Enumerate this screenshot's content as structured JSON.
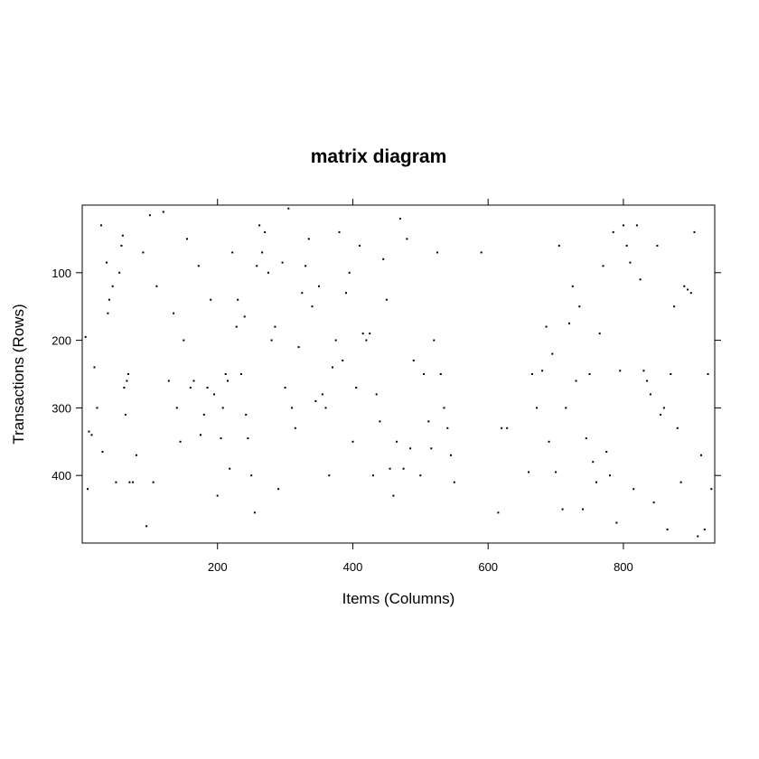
{
  "chart_data": {
    "type": "scatter",
    "title": "matrix diagram",
    "xlabel": "Items (Columns)",
    "ylabel": "Transactions (Rows)",
    "xlim": [
      0,
      935
    ],
    "ylim": [
      500,
      0
    ],
    "x_ticks": [
      200,
      400,
      600,
      800
    ],
    "y_ticks": [
      100,
      200,
      300,
      400
    ],
    "grid": false,
    "legend": "none",
    "point_color": "#000000",
    "series": [
      {
        "points": [
          [
            5,
            195
          ],
          [
            8,
            420
          ],
          [
            10,
            335
          ],
          [
            14,
            340
          ],
          [
            18,
            240
          ],
          [
            22,
            300
          ],
          [
            28,
            30
          ],
          [
            30,
            365
          ],
          [
            36,
            85
          ],
          [
            38,
            160
          ],
          [
            40,
            140
          ],
          [
            45,
            120
          ],
          [
            50,
            410
          ],
          [
            55,
            100
          ],
          [
            58,
            60
          ],
          [
            60,
            45
          ],
          [
            62,
            270
          ],
          [
            64,
            310
          ],
          [
            66,
            260
          ],
          [
            68,
            250
          ],
          [
            70,
            410
          ],
          [
            75,
            410
          ],
          [
            80,
            370
          ],
          [
            90,
            70
          ],
          [
            95,
            475
          ],
          [
            100,
            15
          ],
          [
            105,
            410
          ],
          [
            110,
            120
          ],
          [
            120,
            10
          ],
          [
            128,
            260
          ],
          [
            135,
            160
          ],
          [
            140,
            300
          ],
          [
            145,
            350
          ],
          [
            150,
            200
          ],
          [
            155,
            50
          ],
          [
            160,
            270
          ],
          [
            165,
            260
          ],
          [
            172,
            90
          ],
          [
            175,
            340
          ],
          [
            180,
            310
          ],
          [
            185,
            270
          ],
          [
            190,
            140
          ],
          [
            195,
            280
          ],
          [
            200,
            430
          ],
          [
            205,
            345
          ],
          [
            208,
            300
          ],
          [
            212,
            250
          ],
          [
            215,
            260
          ],
          [
            218,
            390
          ],
          [
            222,
            70
          ],
          [
            228,
            180
          ],
          [
            230,
            140
          ],
          [
            235,
            250
          ],
          [
            240,
            165
          ],
          [
            242,
            310
          ],
          [
            245,
            345
          ],
          [
            250,
            400
          ],
          [
            255,
            455
          ],
          [
            258,
            90
          ],
          [
            262,
            30
          ],
          [
            266,
            70
          ],
          [
            270,
            40
          ],
          [
            275,
            100
          ],
          [
            280,
            200
          ],
          [
            285,
            180
          ],
          [
            290,
            420
          ],
          [
            296,
            85
          ],
          [
            300,
            270
          ],
          [
            305,
            5
          ],
          [
            310,
            300
          ],
          [
            315,
            330
          ],
          [
            320,
            210
          ],
          [
            325,
            130
          ],
          [
            330,
            90
          ],
          [
            335,
            50
          ],
          [
            340,
            150
          ],
          [
            345,
            290
          ],
          [
            350,
            120
          ],
          [
            355,
            280
          ],
          [
            360,
            300
          ],
          [
            365,
            400
          ],
          [
            370,
            240
          ],
          [
            375,
            200
          ],
          [
            380,
            40
          ],
          [
            385,
            230
          ],
          [
            390,
            130
          ],
          [
            395,
            100
          ],
          [
            400,
            350
          ],
          [
            405,
            270
          ],
          [
            410,
            60
          ],
          [
            415,
            190
          ],
          [
            420,
            200
          ],
          [
            425,
            190
          ],
          [
            430,
            400
          ],
          [
            435,
            280
          ],
          [
            440,
            320
          ],
          [
            445,
            80
          ],
          [
            450,
            140
          ],
          [
            455,
            390
          ],
          [
            460,
            430
          ],
          [
            465,
            350
          ],
          [
            470,
            20
          ],
          [
            475,
            390
          ],
          [
            480,
            50
          ],
          [
            485,
            360
          ],
          [
            490,
            230
          ],
          [
            500,
            400
          ],
          [
            505,
            250
          ],
          [
            512,
            320
          ],
          [
            516,
            360
          ],
          [
            520,
            200
          ],
          [
            525,
            70
          ],
          [
            530,
            250
          ],
          [
            535,
            300
          ],
          [
            540,
            330
          ],
          [
            545,
            370
          ],
          [
            550,
            410
          ],
          [
            590,
            70
          ],
          [
            615,
            455
          ],
          [
            620,
            330
          ],
          [
            628,
            330
          ],
          [
            660,
            395
          ],
          [
            665,
            250
          ],
          [
            672,
            300
          ],
          [
            680,
            245
          ],
          [
            686,
            180
          ],
          [
            690,
            350
          ],
          [
            695,
            220
          ],
          [
            700,
            395
          ],
          [
            705,
            60
          ],
          [
            710,
            450
          ],
          [
            715,
            300
          ],
          [
            720,
            175
          ],
          [
            725,
            120
          ],
          [
            730,
            260
          ],
          [
            735,
            150
          ],
          [
            740,
            450
          ],
          [
            745,
            345
          ],
          [
            750,
            250
          ],
          [
            755,
            380
          ],
          [
            760,
            410
          ],
          [
            765,
            190
          ],
          [
            770,
            90
          ],
          [
            775,
            365
          ],
          [
            780,
            400
          ],
          [
            785,
            40
          ],
          [
            790,
            470
          ],
          [
            795,
            245
          ],
          [
            800,
            30
          ],
          [
            805,
            60
          ],
          [
            810,
            85
          ],
          [
            815,
            420
          ],
          [
            820,
            30
          ],
          [
            825,
            110
          ],
          [
            830,
            245
          ],
          [
            835,
            260
          ],
          [
            840,
            280
          ],
          [
            845,
            440
          ],
          [
            850,
            60
          ],
          [
            855,
            310
          ],
          [
            860,
            300
          ],
          [
            865,
            480
          ],
          [
            870,
            250
          ],
          [
            875,
            150
          ],
          [
            880,
            330
          ],
          [
            885,
            410
          ],
          [
            890,
            120
          ],
          [
            895,
            125
          ],
          [
            900,
            130
          ],
          [
            905,
            40
          ],
          [
            910,
            490
          ],
          [
            915,
            370
          ],
          [
            920,
            480
          ],
          [
            925,
            250
          ],
          [
            930,
            420
          ]
        ]
      }
    ]
  }
}
